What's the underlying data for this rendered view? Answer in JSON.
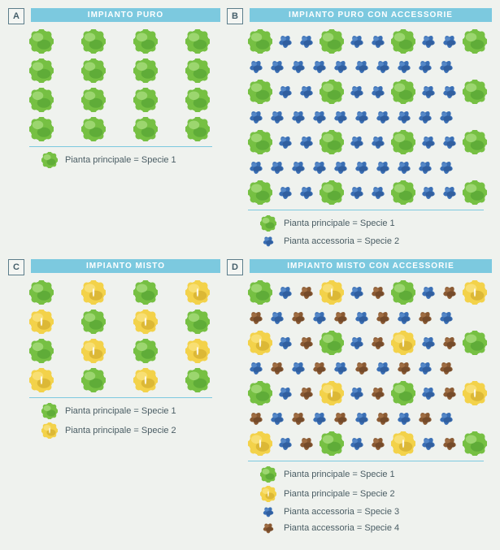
{
  "background_color": "#eff2ee",
  "title_bar_bg": "#7cc9df",
  "title_bar_fg": "#ffffff",
  "divider_color": "#7cc9df",
  "letter_border": "#5c7d8a",
  "legend_text_color": "#4a5d64",
  "species": {
    "green_large": {
      "size": 30,
      "fill": "#76c043",
      "shade": "#4d9a2f",
      "light": "#b6e48d",
      "type": "bush"
    },
    "yellow_large": {
      "size": 30,
      "fill": "#f3d24a",
      "shade": "#c8a326",
      "light": "#fbe88f",
      "type": "bush",
      "slit": true
    },
    "blue_small": {
      "size": 20,
      "fill": "#3a6fb5",
      "shade": "#28508a",
      "light": "#6a9bd6",
      "type": "leafy"
    },
    "brown_small": {
      "size": 20,
      "fill": "#8a5a33",
      "shade": "#5f3c21",
      "light": "#b07e51",
      "type": "leafy"
    }
  },
  "panels": [
    {
      "letter": "A",
      "title": "IMPIANTO PURO",
      "cell_gap": 34,
      "rows": [
        [
          "green_large",
          "green_large",
          "green_large",
          "green_large"
        ],
        [
          "green_large",
          "green_large",
          "green_large",
          "green_large"
        ],
        [
          "green_large",
          "green_large",
          "green_large",
          "green_large"
        ],
        [
          "green_large",
          "green_large",
          "green_large",
          "green_large"
        ]
      ],
      "legend": [
        {
          "species": "green_large",
          "text": "Pianta principale = Specie 1"
        }
      ]
    },
    {
      "letter": "B",
      "title": "IMPIANTO PURO CON ACCESSORIE",
      "cell_gap": 6,
      "rows": [
        [
          "green_large",
          "blue_small",
          "blue_small",
          "green_large",
          "blue_small",
          "blue_small",
          "green_large",
          "blue_small",
          "blue_small",
          "green_large"
        ],
        [
          "blue_small",
          "blue_small",
          "blue_small",
          "blue_small",
          "blue_small",
          "blue_small",
          "blue_small",
          "blue_small",
          "blue_small",
          "blue_small"
        ],
        [
          "green_large",
          "blue_small",
          "blue_small",
          "green_large",
          "blue_small",
          "blue_small",
          "green_large",
          "blue_small",
          "blue_small",
          "green_large"
        ],
        [
          "blue_small",
          "blue_small",
          "blue_small",
          "blue_small",
          "blue_small",
          "blue_small",
          "blue_small",
          "blue_small",
          "blue_small",
          "blue_small"
        ],
        [
          "green_large",
          "blue_small",
          "blue_small",
          "green_large",
          "blue_small",
          "blue_small",
          "green_large",
          "blue_small",
          "blue_small",
          "green_large"
        ],
        [
          "blue_small",
          "blue_small",
          "blue_small",
          "blue_small",
          "blue_small",
          "blue_small",
          "blue_small",
          "blue_small",
          "blue_small",
          "blue_small"
        ],
        [
          "green_large",
          "blue_small",
          "blue_small",
          "green_large",
          "blue_small",
          "blue_small",
          "green_large",
          "blue_small",
          "blue_small",
          "green_large"
        ]
      ],
      "legend": [
        {
          "species": "green_large",
          "text": "Pianta principale = Specie 1"
        },
        {
          "species": "blue_small",
          "text": "Pianta accessoria = Specie 2"
        }
      ]
    },
    {
      "letter": "C",
      "title": "IMPIANTO MISTO",
      "cell_gap": 34,
      "rows": [
        [
          "green_large",
          "yellow_large",
          "green_large",
          "yellow_large"
        ],
        [
          "yellow_large",
          "green_large",
          "yellow_large",
          "green_large"
        ],
        [
          "green_large",
          "yellow_large",
          "green_large",
          "yellow_large"
        ],
        [
          "yellow_large",
          "green_large",
          "yellow_large",
          "green_large"
        ]
      ],
      "legend": [
        {
          "species": "green_large",
          "text": "Pianta principale = Specie 1"
        },
        {
          "species": "yellow_large",
          "text": "Pianta principale = Specie 2"
        }
      ]
    },
    {
      "letter": "D",
      "title": "IMPIANTO MISTO CON ACCESSORIE",
      "cell_gap": 6,
      "rows": [
        [
          "green_large",
          "blue_small",
          "brown_small",
          "yellow_large",
          "blue_small",
          "brown_small",
          "green_large",
          "blue_small",
          "brown_small",
          "yellow_large"
        ],
        [
          "brown_small",
          "blue_small",
          "brown_small",
          "blue_small",
          "brown_small",
          "blue_small",
          "brown_small",
          "blue_small",
          "brown_small",
          "blue_small"
        ],
        [
          "yellow_large",
          "blue_small",
          "brown_small",
          "green_large",
          "blue_small",
          "brown_small",
          "yellow_large",
          "blue_small",
          "brown_small",
          "green_large"
        ],
        [
          "blue_small",
          "brown_small",
          "blue_small",
          "brown_small",
          "blue_small",
          "brown_small",
          "blue_small",
          "brown_small",
          "blue_small",
          "brown_small"
        ],
        [
          "green_large",
          "blue_small",
          "brown_small",
          "yellow_large",
          "blue_small",
          "brown_small",
          "green_large",
          "blue_small",
          "brown_small",
          "yellow_large"
        ],
        [
          "brown_small",
          "blue_small",
          "brown_small",
          "blue_small",
          "brown_small",
          "blue_small",
          "brown_small",
          "blue_small",
          "brown_small",
          "blue_small"
        ],
        [
          "yellow_large",
          "blue_small",
          "brown_small",
          "green_large",
          "blue_small",
          "brown_small",
          "yellow_large",
          "blue_small",
          "brown_small",
          "green_large"
        ]
      ],
      "legend": [
        {
          "species": "green_large",
          "text": "Pianta principale = Specie 1"
        },
        {
          "species": "yellow_large",
          "text": "Pianta principale = Specie 2"
        },
        {
          "species": "blue_small",
          "text": "Pianta accessoria = Specie 3"
        },
        {
          "species": "brown_small",
          "text": "Pianta accessoria = Specie 4"
        }
      ]
    }
  ]
}
